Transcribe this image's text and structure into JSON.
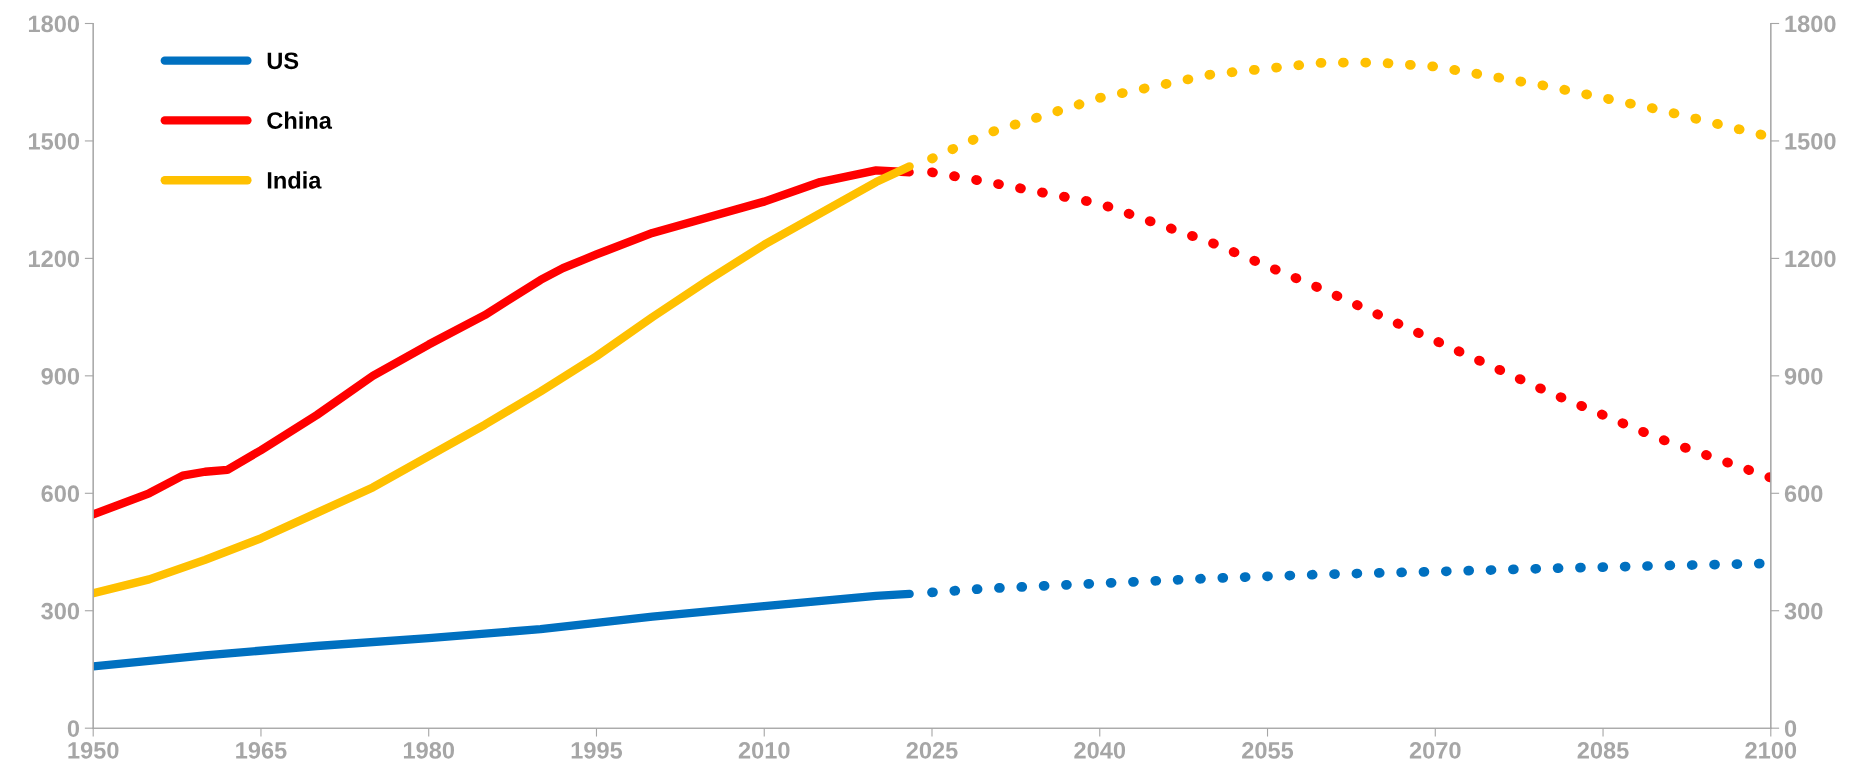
{
  "chart_data": {
    "type": "line",
    "xlim": [
      1950,
      2100
    ],
    "xticks": [
      1950,
      1965,
      1980,
      1995,
      2010,
      2025,
      2040,
      2055,
      2070,
      2085,
      2100
    ],
    "ylim": [
      0,
      1800
    ],
    "yticks": [
      0,
      300,
      600,
      900,
      1200,
      1500,
      1800
    ],
    "y2lim": [
      0,
      1800
    ],
    "y2ticks": [
      0,
      300,
      600,
      900,
      1200,
      1500,
      1800
    ],
    "grid": false,
    "legend": "top left",
    "marker": "none",
    "series": [
      {
        "name": "US",
        "color": "#0070c0",
        "line_style": "solid",
        "x": [
          1950,
          1960,
          1970,
          1980,
          1990,
          2000,
          2010,
          2020,
          2023
        ],
        "values": [
          158,
          186,
          210,
          230,
          253,
          285,
          312,
          338,
          343
        ]
      },
      {
        "name": "China",
        "color": "#ff0000",
        "line_style": "solid",
        "x": [
          1950,
          1955,
          1958,
          1960,
          1962,
          1965,
          1970,
          1975,
          1980,
          1985,
          1990,
          1992,
          1995,
          2000,
          2005,
          2010,
          2015,
          2020,
          2023
        ],
        "values": [
          546,
          600,
          645,
          655,
          660,
          710,
          800,
          900,
          980,
          1055,
          1145,
          1175,
          1210,
          1265,
          1305,
          1345,
          1395,
          1425,
          1420
        ]
      },
      {
        "name": "India",
        "color": "#ffc000",
        "line_style": "solid",
        "x": [
          1950,
          1955,
          1960,
          1965,
          1970,
          1975,
          1980,
          1985,
          1990,
          1995,
          2000,
          2005,
          2010,
          2015,
          2020,
          2023
        ],
        "values": [
          345,
          380,
          430,
          485,
          550,
          615,
          695,
          775,
          860,
          950,
          1050,
          1145,
          1235,
          1315,
          1395,
          1435
        ]
      },
      {
        "color": "#0070c0",
        "line_style": "dotted",
        "x": [
          2025,
          2030,
          2040,
          2050,
          2060,
          2070,
          2080,
          2090,
          2100
        ],
        "values": [
          347,
          357,
          370,
          383,
          393,
          400,
          408,
          415,
          421
        ]
      },
      {
        "color": "#ff0000",
        "line_style": "dotted",
        "x": [
          2025,
          2030,
          2040,
          2050,
          2060,
          2070,
          2080,
          2090,
          2100
        ],
        "values": [
          1420,
          1395,
          1340,
          1240,
          1120,
          990,
          860,
          740,
          640
        ]
      },
      {
        "color": "#ffc000",
        "line_style": "dotted",
        "x": [
          2025,
          2030,
          2040,
          2050,
          2060,
          2065,
          2070,
          2080,
          2090,
          2100
        ],
        "values": [
          1455,
          1520,
          1610,
          1670,
          1700,
          1700,
          1690,
          1640,
          1580,
          1510
        ]
      }
    ]
  }
}
